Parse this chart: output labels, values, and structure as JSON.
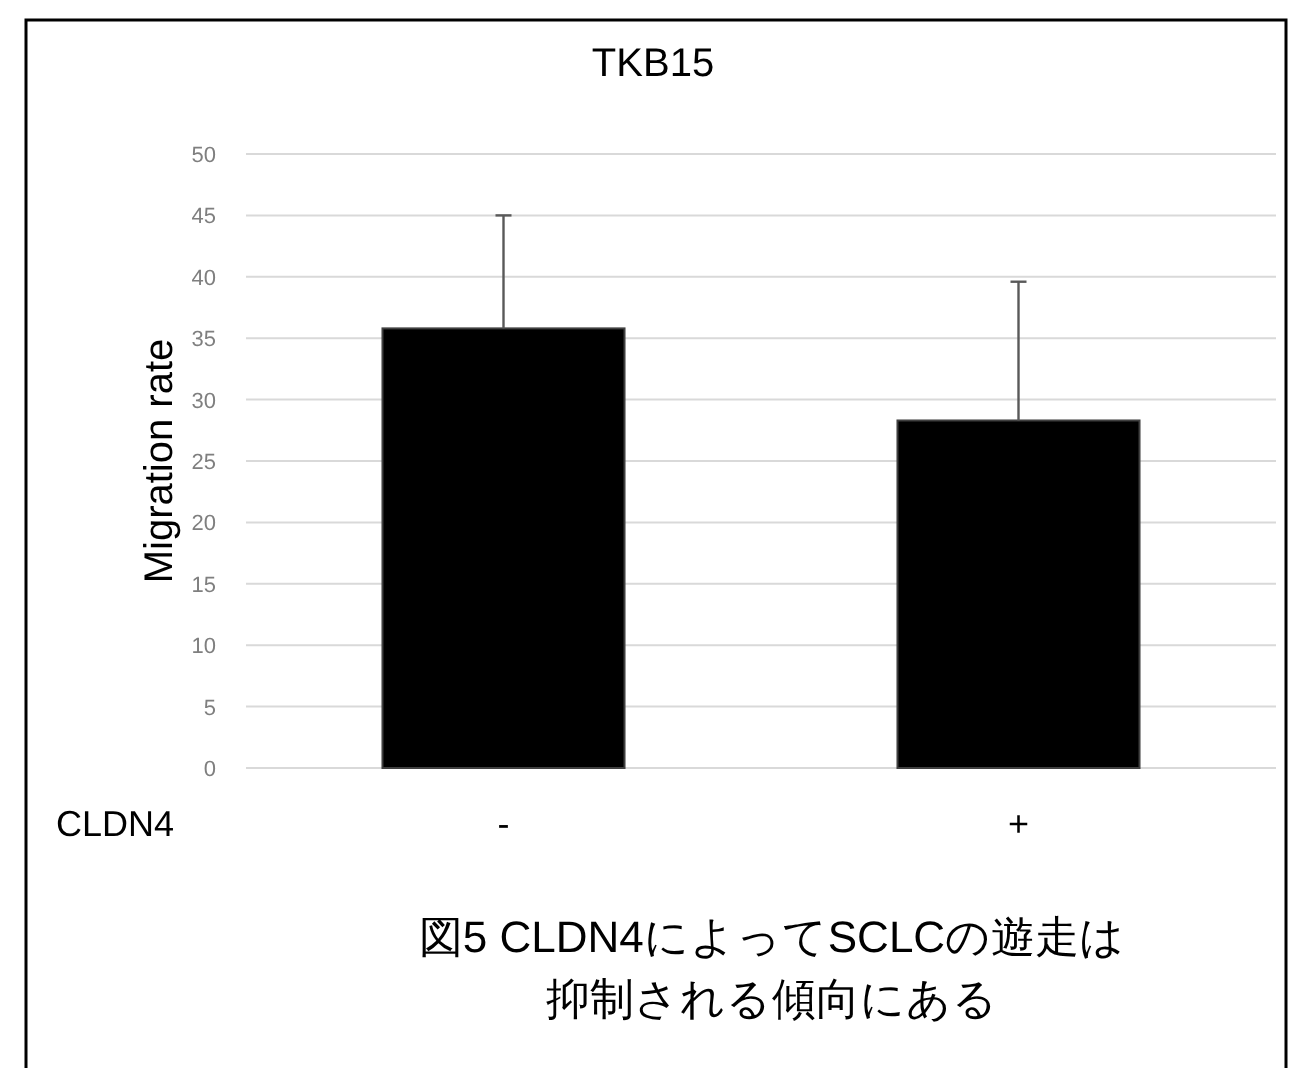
{
  "chart_data": {
    "type": "bar",
    "title": "TKB15",
    "xlabel": "CLDN4",
    "ylabel": "Migration rate",
    "categories": [
      "-",
      "+"
    ],
    "series": [
      {
        "color": "#000000",
        "values": [
          35.8,
          28.3
        ],
        "errors": [
          [
            35.8,
            45.0
          ],
          [
            28.3,
            39.6
          ]
        ]
      }
    ],
    "ylim": [
      0,
      50
    ],
    "yticks": [
      0,
      5,
      10,
      15,
      20,
      25,
      30,
      35,
      40,
      45,
      50
    ],
    "grid": "y",
    "annotations": [
      "図5 CLDN4によってSCLCの遊走は",
      "抑制される傾向にある"
    ]
  }
}
